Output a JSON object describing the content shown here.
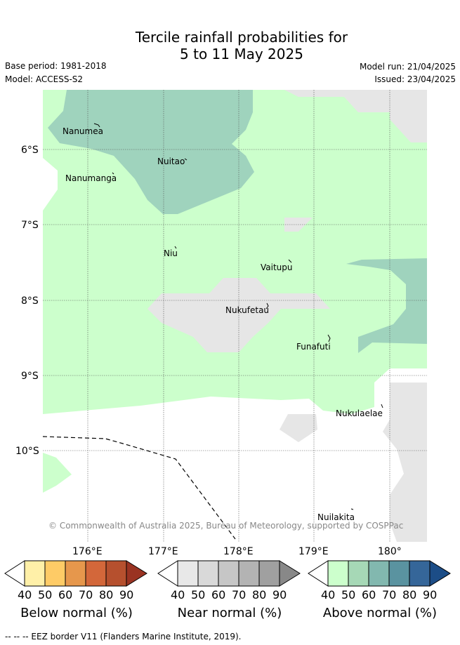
{
  "title_line1": "Tercile rainfall probabilities for",
  "title_line2": "5 to 11 May 2025",
  "base_period": "Base period: 1981-2018",
  "model": "Model: ACCESS-S2",
  "model_run": "Model run: 21/04/2025",
  "issued": "Issued: 23/04/2025",
  "lat_labels": [
    "6°S",
    "7°S",
    "8°S",
    "9°S",
    "10°S"
  ],
  "lon_labels": [
    "176°E",
    "177°E",
    "178°E",
    "179°E",
    "180°"
  ],
  "places": [
    "Nanumea",
    "Nuitao",
    "Nanumanga",
    "Niu",
    "Vaitupu",
    "Nukufetau",
    "Funafuti",
    "Nukulaelae",
    "Nuilakita"
  ],
  "copyright": "© Commonwealth of Australia 2025, Bureau of Meteorology, supported by COSPPac",
  "colorbars": [
    {
      "title": "Below normal (%)",
      "ticks": [
        "40",
        "50",
        "60",
        "70",
        "80",
        "90"
      ],
      "colors": [
        "#ffffff",
        "#fff0a8",
        "#fecb66",
        "#e6974c",
        "#d3673a",
        "#b6502e",
        "#9a3322"
      ]
    },
    {
      "title": "Near normal (%)",
      "ticks": [
        "40",
        "50",
        "60",
        "70",
        "80",
        "90"
      ],
      "colors": [
        "#ffffff",
        "#e8e8e8",
        "#d9d9d9",
        "#c6c6c6",
        "#b3b3b3",
        "#a0a0a0",
        "#888888"
      ]
    },
    {
      "title": "Above normal (%)",
      "ticks": [
        "40",
        "50",
        "60",
        "70",
        "80",
        "90"
      ],
      "colors": [
        "#ffffff",
        "#ccffcc",
        "#a6d8b6",
        "#82b8af",
        "#5a93a0",
        "#356699",
        "#1c4d87"
      ]
    }
  ],
  "map_colors": {
    "above_40": "#ccffcc",
    "above_50": "#9fd3bd",
    "near_40": "#e6e6e6"
  },
  "footnote": "--  --  -- EEZ border V11 (Flanders Marine Institute, 2019)."
}
